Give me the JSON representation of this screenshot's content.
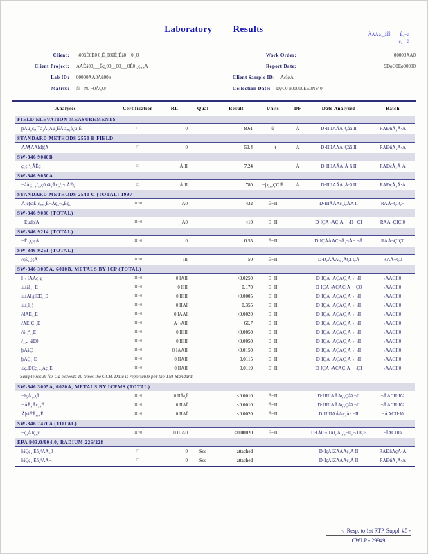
{
  "artifacts": {
    "top_left": ".¸"
  },
  "title": {
    "word1": "Laboratory",
    "word2": "Results"
  },
  "links": {
    "line1a": "ÀÀÅä¸_åÎÎ",
    "line1b": "Ê¸¬ä",
    "line2": "ç¸—ä"
  },
  "header": {
    "fields_left": [
      {
        "label": "Client:",
        "value": "¬00ûÈ0Ê0 0¸Ê¸00ûÊ¸Êä0__0  ¸0"
      },
      {
        "label": "Client Project:",
        "value": "ÃÅÊä00¸__Êç¸00__00¸__0Ê0 ¸ç„„Å"
      },
      {
        "label": "Lab ID:",
        "value": "00000AA0Aû00ø"
      },
      {
        "label": "Matrix:",
        "value": "Ñ—#0 ¬0ÃÇ0/—"
      }
    ],
    "fields_right": [
      {
        "label": "Work Order:",
        "value": "00000AA0"
      },
      {
        "label": "Report Date:",
        "value": "9DøC0Eø00000"
      },
      {
        "label": "Client Sample ID:",
        "value": "ÃcÎøÅ"
      },
      {
        "label": "Collection Date:",
        "value": "DýC0 ø00000ÈE0NV 0"
      }
    ]
  },
  "table": {
    "columns": [
      "Analyses",
      "Certification",
      "RL",
      "Qual",
      "Result",
      "Units",
      "DF",
      "Date Analyzed",
      "Batch"
    ],
    "sections": [
      {
        "title": "FIELD ELEVATION MEASUREMENTS",
        "rows": [
          {
            "analysis": "þÀµ¸ç„¸¯ä¸Å¸Àµ¸ÊÄ  ä„¸å¸µ¸Ê",
            "cert": "□",
            "rl": "0",
            "qual": "",
            "result": "8.61",
            "units": "ů",
            "df": "Å",
            "date": "D·IIIIAÄA¸Çåã II",
            "batch": "RAÐñÅ¸Å·À"
          }
        ]
      },
      {
        "title": "STANDARD METHODS 2550 B FIELD",
        "rows": [
          {
            "analysis": "ÅÀ¶ÀÄŀdþ¦Å",
            "cert": "□",
            "rl": "0",
            "qual": "",
            "result": "53.4",
            "units": "—ŧ",
            "df": "Å",
            "date": "D·IIIIAÄA¸Çåã II",
            "batch": "RAÐñÅ¸Å·À"
          }
        ]
      },
      {
        "title": "SW-846 9040B",
        "rows": [
          {
            "analysis": "ç¸ç¸ª¸ÅÊç",
            "cert": "□",
            "rl": "Å II",
            "qual": "",
            "result": "7.24",
            "units": "",
            "df": "Å",
            "date": "D·IIIIAÄA¸Å·ã II",
            "batch": "RAÐçÅ¸Å·À"
          }
        ]
      },
      {
        "title": "SW-846 9050A",
        "rows": [
          {
            "analysis": "¬åÅç¸ ¸/¸¸ç0þäçÅç¸ª¸¬  ÅÊç",
            "cert": "□",
            "rl": "Å II",
            "qual": "",
            "result": "780",
            "units": "¬þç¸¸ÇÇ Ê",
            "df": "Å",
            "date": "D·IIIIAÄA¸Å·ã II",
            "batch": "RAÐçÅ¸Å·À"
          }
        ]
      },
      {
        "title": "STANDARD METHODS 2540 C (TOTAL) 1997",
        "rows": [
          {
            "analysis": "Å¸çþäÊ¸ç„„¸Ê¬Àç¸¬„Êç¸",
            "cert": "III¬0",
            "rl": "A0",
            "qual": "",
            "result": "432",
            "units": "Ê¬II",
            "df": "",
            "date": "D·IIIÅÄAç¸ÇÅA II",
            "batch": "RAÅ¬ÇIÇ¬"
          }
        ]
      },
      {
        "title": "SW-846 9036 (TOTAL)",
        "rows": [
          {
            "analysis": "¬Êµdþ¦À",
            "cert": "III¬0",
            "rl": "¸Å0",
            "qual": "",
            "result": "<10",
            "units": "Ê¬II",
            "df": "",
            "date": "D·IÇÅ¬AÇ¸Å¬ ¬II ¬ÇI",
            "batch": "RAÅ¬ÇIÇI0"
          }
        ]
      },
      {
        "title": "SW-846 9214 (TOTAL)",
        "rows": [
          {
            "analysis": "¬Ê¸¸ç¦çÀ",
            "cert": "III¬0",
            "rl": "0",
            "qual": "",
            "result": "0.55",
            "units": "Ê¬II",
            "df": "",
            "date": "D·IÇÅÅAÇ¬Å¸¬Å¬ ¬Å",
            "batch": "RAÅ¬ÇIÇ0"
          }
        ]
      },
      {
        "title": "SW-846 9251 (TOTAL)",
        "rows": [
          {
            "analysis": "/çÊ¸¸¦çÅ",
            "cert": "III¬0",
            "rl": "III",
            "qual": "",
            "result": "50",
            "units": "Ê¬II",
            "df": "",
            "date": "D·IÇÅÅAÇ¸ÅÇI ÇÅ",
            "batch": "RAÅ¬Ç0"
          }
        ]
      },
      {
        "title": "SW-846 3005A, 6010B, METALS BY ICP (TOTAL)",
        "rows": [
          {
            "analysis": "ŀ¬·ÏÅÀç¸ç",
            "cert": "III¬0",
            "rl": "0 IAII",
            "qual": "",
            "result": "<0.0250",
            "units": "Ê¬II",
            "df": "",
            "date": "D·IÇÅ¬AÇAÇ¸Å¬ ¬II",
            "batch": "¬ÅACII0·"
          },
          {
            "analysis": "±±äÎ¸¸ Ê",
            "cert": "III¬0",
            "rl": "0 IIII",
            "qual": "",
            "result": "0.170",
            "units": "Ê¬II",
            "df": "",
            "date": "D·IÇÅ¬AÇAÇ¸Å¬ ·Ç0",
            "batch": "¬ÅACII0·"
          },
          {
            "analysis": "±±ÅŀģÎÊÊ¸¸Ê",
            "cert": "III¬0",
            "rl": "0 IIIII",
            "qual": "",
            "result": "<0.0005",
            "units": "Ê¬II",
            "df": "",
            "date": "D·IÇÅ¬AÇAÇ¸Å¬ ¬II",
            "batch": "¬ÅACII0·"
          },
          {
            "analysis": "±±¸ŀ¸¦¦",
            "cert": "III¬0",
            "rl": "0 IIAI",
            "qual": "",
            "result": "0.355",
            "units": "Ê¬II",
            "df": "",
            "date": "D·IÇÅ¬AÇAÇ¸Å¬ ¬II",
            "batch": "¬ÅACII0·"
          },
          {
            "analysis": "/dÅÊ¸¸Ê",
            "cert": "III¬0",
            "rl": "0 IAAÎ",
            "qual": "",
            "result": "<0.0020",
            "units": "Ê¬II",
            "df": "",
            "date": "D·IÇÅ¬AÇAÇ¸Å¬ ¬II",
            "batch": "¬ÅACII0·"
          },
          {
            "analysis": "/ÄÊÎÇ¸¸Ê",
            "cert": "III¬0",
            "rl": "Å ¬ÅII",
            "qual": "",
            "result": "66.7",
            "units": "Ê¬II",
            "df": "",
            "date": "D·IÇÅ¬AÇAÇ¸Å¬ ¬II",
            "batch": "¬ÅACII0·"
          },
          {
            "analysis": "/ô¸¸ª¸¸Ê",
            "cert": "III¬0",
            "rl": "0 IIIII",
            "qual": "",
            "result": "<0.0050",
            "units": "Ê¬II",
            "df": "",
            "date": "D·IÇÅ¬AÇAÇ¸Å¬ ¬II",
            "batch": "¬ÅACII0·"
          },
          {
            "analysis": "/¸¸„¬äÊ0",
            "cert": "III¬0",
            "rl": "0 IIIII",
            "qual": "",
            "result": "<0.0050",
            "units": "Ê¬II",
            "df": "",
            "date": "D·IÇÅ¬AÇAÇ¸Å¬ ¬II",
            "batch": "¬ÅACII0·"
          },
          {
            "analysis": "þÅäÇ",
            "cert": "III¬0",
            "rl": "0 IÅÅII",
            "qual": "",
            "result": "<0.0150",
            "units": "Ê¬II",
            "df": "",
            "date": "D·IÇÅ¬AÇAÇ¸Å¬ ¬II",
            "batch": "¬ÅACII0·"
          },
          {
            "analysis": "þÄÇ¸¸Ê",
            "cert": "III¬0",
            "rl": "0 IIÅII",
            "qual": "",
            "result": "0.0115",
            "units": "Ê¬II",
            "df": "",
            "date": "D·IÇÅ¬AÇAÇ¸Å¬ ¬II",
            "batch": "¬ÅACII0·"
          },
          {
            "analysis": "±ç„ÊÇç¸„¸Àç¸Ê",
            "cert": "III¬0",
            "rl": "0 IIAII",
            "qual": "",
            "result": "0.0119",
            "units": "Ê¬II",
            "df": "",
            "date": "D·IÇÅ¬AÇAÇ¸Å¬ ¬ÇI",
            "batch": "¬ÅACII0·"
          }
        ],
        "note": "Sample result for Ca exceeds 10 times the CCB. Data is reportable per the TNI Standard."
      },
      {
        "title": "SW-846 3005A, 6020A, METALS BY ICPMS (TOTAL)",
        "rows": [
          {
            "analysis": "¬ŀçÅ¸„çÏ",
            "cert": "III¬0",
            "rl": "0 IIÅçÏ",
            "qual": "",
            "result": "<0.0010",
            "units": "Ê¬II",
            "df": "",
            "date": "D·IIIIIAÄAç¸Çåã ¬II",
            "batch": "¬ÅACII·Iûä"
          },
          {
            "analysis": "¬ÅÊ¸Åç¸¸Ê",
            "cert": "III¬0",
            "rl": "0 IIAÎ",
            "qual": "",
            "result": "<0.0010",
            "units": "Ê¬II",
            "df": "",
            "date": "D·IIIIIAÄAç¸Çåã ¬II",
            "batch": "¬ÅACII·Iûä"
          },
          {
            "analysis": "ÅþäÊÊ¸¸¸Ê",
            "cert": "III¬0",
            "rl": "0 IIAÎ",
            "qual": "",
            "result": "<0.0020",
            "units": "Ê¬II",
            "df": "",
            "date": "D·IIIIIAÄAç¸Å· ¬II",
            "batch": "¬ÅACII·I0"
          }
        ]
      },
      {
        "title": "SW-846 7470A (TOTAL)",
        "rows": [
          {
            "analysis": "¬ç¸Åŀç¸¦ç",
            "cert": "III¬0",
            "rl": "0 IIIA0",
            "qual": "",
            "result": "<0.00020",
            "units": "Ê¬II",
            "df": "",
            "date": "D·IÅÇ¬IIAÇAÇ¸¬IÇ¬ IIÇĿ",
            "batch": "¬ÎACIIIä"
          }
        ]
      },
      {
        "title": "EPA 903.0/904.0, RADIUM 226/228",
        "rows": [
          {
            "analysis": "ŀäÇç¸ Êô¸ªAA¸0",
            "cert": "□",
            "rl": "0",
            "qual": "See",
            "result": "attached",
            "units": "",
            "df": "",
            "date": "D·IçAIZAÄAç¸Å II",
            "batch": "RAÐñÅçÅ·À"
          },
          {
            "analysis": "ŀäÇç¸ Êô¸ªAA¬",
            "cert": "□",
            "rl": "0",
            "qual": "See",
            "result": "attached",
            "units": "",
            "df": "",
            "date": "D·IçAIZAÄAç¸Å II",
            "batch": "RAÐñÅ¸Å·À"
          }
        ]
      }
    ]
  },
  "footer": {
    "line1": "Resp. to 1st RTP, Suppl. #5 -",
    "line2": "CWLP - 29949"
  }
}
